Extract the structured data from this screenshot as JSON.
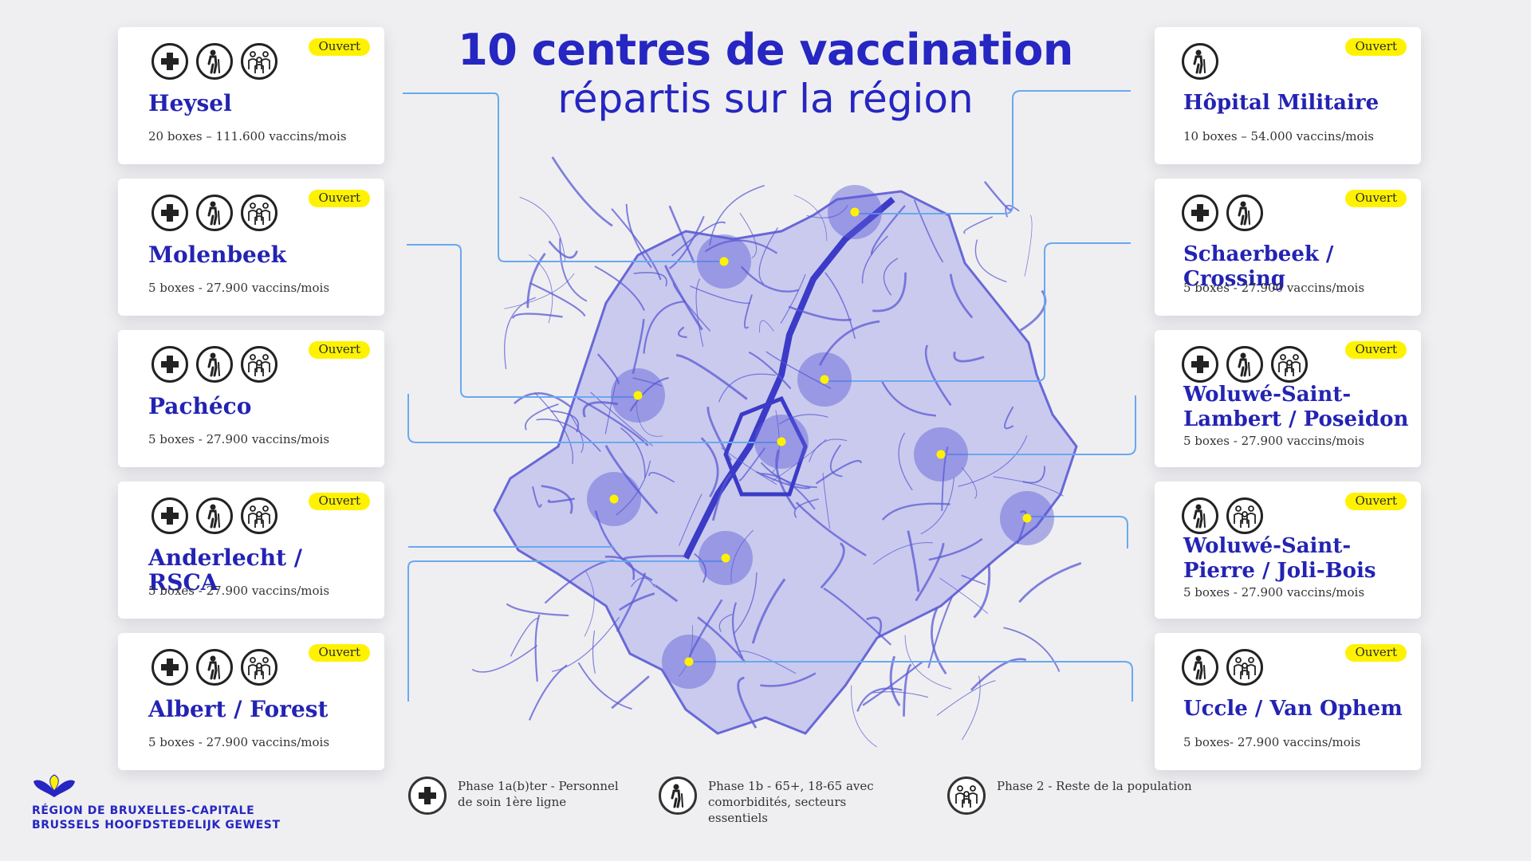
{
  "title": {
    "line1": "10 centres de vaccination",
    "line2": "répartis sur la région"
  },
  "centers_left": [
    {
      "name": "Heysel",
      "info": "20 boxes – 111.600 vaccins/mois",
      "status": "Ouvert",
      "icons": [
        "medical-cross-icon",
        "senior-icon",
        "population-icon"
      ]
    },
    {
      "name": "Molenbeek",
      "info": "5 boxes - 27.900 vaccins/mois",
      "status": "Ouvert",
      "icons": [
        "medical-cross-icon",
        "senior-icon",
        "population-icon"
      ]
    },
    {
      "name": "Pachéco",
      "info": "5 boxes - 27.900 vaccins/mois",
      "status": "Ouvert",
      "icons": [
        "medical-cross-icon",
        "senior-icon",
        "population-icon"
      ]
    },
    {
      "name": "Anderlecht / RSCA",
      "info": "5 boxes - 27.900 vaccins/mois",
      "status": "Ouvert",
      "icons": [
        "medical-cross-icon",
        "senior-icon",
        "population-icon"
      ]
    },
    {
      "name": "Albert / Forest",
      "info": "5 boxes - 27.900 vaccins/mois",
      "status": "Ouvert",
      "icons": [
        "medical-cross-icon",
        "senior-icon",
        "population-icon"
      ]
    }
  ],
  "centers_right": [
    {
      "name": "Hôpital Militaire",
      "info": "10 boxes – 54.000 vaccins/mois",
      "status": "Ouvert",
      "icons": [
        "senior-icon"
      ]
    },
    {
      "name": "Schaerbeek / Crossing",
      "info": "5 boxes - 27.900 vaccins/mois",
      "status": "Ouvert",
      "icons": [
        "medical-cross-icon",
        "senior-icon"
      ]
    },
    {
      "name": "Woluwé-Saint-Lambert / Poseidon",
      "info": "5 boxes - 27.900 vaccins/mois",
      "status": "Ouvert",
      "icons": [
        "medical-cross-icon",
        "senior-icon",
        "population-icon"
      ]
    },
    {
      "name": "Woluwé-Saint-Pierre / Joli-Bois",
      "info": "5 boxes - 27.900 vaccins/mois",
      "status": "Ouvert",
      "icons": [
        "senior-icon",
        "population-icon"
      ]
    },
    {
      "name": "Uccle / Van Ophem",
      "info": "5 boxes- 27.900 vaccins/mois",
      "status": "Ouvert",
      "icons": [
        "senior-icon",
        "population-icon"
      ]
    }
  ],
  "legend": [
    {
      "icon": "medical-cross-icon",
      "text": "Phase 1a(b)ter - Personnel de soin 1ère ligne"
    },
    {
      "icon": "senior-icon",
      "text": "Phase 1b - 65+, 18-65 avec comorbidités, secteurs essentiels"
    },
    {
      "icon": "population-icon",
      "text": "Phase 2 - Reste de la population"
    }
  ],
  "logo": {
    "line1": "RÉGION DE BRUXELLES-CAPITALE",
    "line2": "BRUSSELS HOOFDSTEDELIJK GEWEST"
  },
  "colors": {
    "accent": "#2626c2",
    "badge": "#fff200",
    "map": "#5a5ad6",
    "connector": "#6aa8f0",
    "marker": "#fff200"
  }
}
